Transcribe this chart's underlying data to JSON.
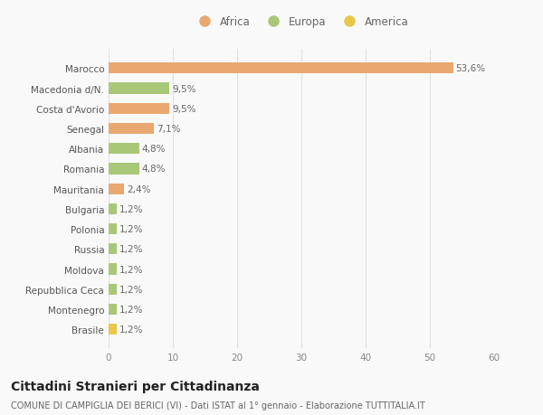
{
  "categories": [
    "Brasile",
    "Montenegro",
    "Repubblica Ceca",
    "Moldova",
    "Russia",
    "Polonia",
    "Bulgaria",
    "Mauritania",
    "Romania",
    "Albania",
    "Senegal",
    "Costa d'Avorio",
    "Macedonia d/N.",
    "Marocco"
  ],
  "values": [
    1.2,
    1.2,
    1.2,
    1.2,
    1.2,
    1.2,
    1.2,
    2.4,
    4.8,
    4.8,
    7.1,
    9.5,
    9.5,
    53.6
  ],
  "labels": [
    "1,2%",
    "1,2%",
    "1,2%",
    "1,2%",
    "1,2%",
    "1,2%",
    "1,2%",
    "2,4%",
    "4,8%",
    "4,8%",
    "7,1%",
    "9,5%",
    "9,5%",
    "53,6%"
  ],
  "colors": [
    "#e8c84a",
    "#a8c878",
    "#a8c878",
    "#a8c878",
    "#a8c878",
    "#a8c878",
    "#a8c878",
    "#e8a870",
    "#a8c878",
    "#a8c878",
    "#e8a870",
    "#e8a870",
    "#a8c878",
    "#e8a870"
  ],
  "africa_color": "#e8a870",
  "europa_color": "#a8c878",
  "america_color": "#e8c84a",
  "xlim": [
    0,
    60
  ],
  "xticks": [
    0,
    10,
    20,
    30,
    40,
    50,
    60
  ],
  "title": "Cittadini Stranieri per Cittadinanza",
  "subtitle": "COMUNE DI CAMPIGLIA DEI BERICI (VI) - Dati ISTAT al 1° gennaio - Elaborazione TUTTITALIA.IT",
  "bg_color": "#f9f9f9",
  "grid_color": "#e0e0e0",
  "bar_height": 0.55,
  "label_fontsize": 7.5,
  "tick_fontsize": 7.5,
  "title_fontsize": 10,
  "subtitle_fontsize": 7
}
